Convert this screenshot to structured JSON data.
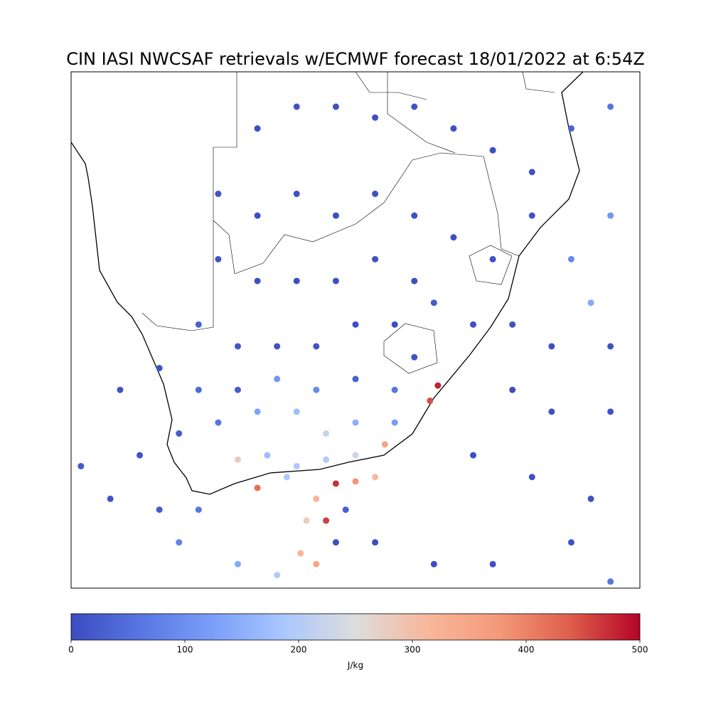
{
  "chart_data": {
    "type": "scatter",
    "title": "CIN IASI NWCSAF retrievals w/ECMWF forecast 18/01/2022 at 6:54Z",
    "xlim": [
      12.5,
      41.5
    ],
    "ylim": [
      -39.1,
      -15.4
    ],
    "colormap": "coolwarm",
    "clim": [
      0,
      500
    ],
    "colorbar_ticks": [
      0,
      100,
      200,
      300,
      400,
      500
    ],
    "colorbar_label": "J/kg",
    "x": [
      22,
      24,
      26,
      28,
      30,
      32,
      34,
      36,
      38,
      40,
      20,
      22,
      24,
      26,
      28,
      30,
      32,
      34,
      36,
      38,
      40,
      39,
      20,
      22,
      24,
      26,
      28,
      30,
      31,
      33,
      35,
      37,
      40,
      19,
      21,
      23,
      25,
      27,
      29,
      30,
      35,
      37,
      40,
      15,
      17,
      19,
      21,
      23,
      25,
      27,
      29,
      31.2,
      30.8,
      16,
      18,
      20,
      22,
      24,
      25.5,
      27,
      29,
      21,
      22.5,
      24,
      25.5,
      27,
      28.5,
      33,
      36,
      39,
      13,
      14.5,
      17,
      19,
      22,
      23.5,
      25,
      26,
      27,
      28,
      24.5,
      25.5,
      26.5,
      24.2,
      25,
      26,
      28,
      31,
      34,
      38,
      21,
      23,
      40,
      18
    ],
    "y": [
      -18,
      -17,
      -17,
      -17.5,
      -17,
      -18,
      -19,
      -20,
      -18,
      -17,
      -21,
      -22,
      -21,
      -22,
      -21,
      -22,
      -23,
      -24,
      -22,
      -24,
      -22,
      -26,
      -24,
      -25,
      -25,
      -25,
      -24,
      -25,
      -26,
      -27,
      -27,
      -28,
      -28,
      -27,
      -28,
      -28,
      -28,
      -27,
      -27,
      -28.5,
      -30,
      -31,
      -31,
      -30,
      -29,
      -30,
      -30,
      -29.5,
      -30,
      -29.5,
      -30,
      -29.8,
      -30.5,
      -33,
      -32,
      -31.5,
      -31,
      -31,
      -32,
      -31.5,
      -31.5,
      -33.2,
      -33,
      -33.5,
      -33.2,
      -33,
      -32.5,
      -33,
      -34,
      -35,
      -33.5,
      -35,
      -35.5,
      -35.5,
      -34.5,
      -34,
      -35,
      -34.3,
      -34.2,
      -34,
      -36,
      -36,
      -35.5,
      -37.5,
      -38,
      -37,
      -37,
      -38,
      -38,
      -37,
      -38,
      -38.5,
      -38.8,
      -37
    ],
    "values": [
      5,
      10,
      8,
      5,
      12,
      6,
      4,
      10,
      30,
      60,
      15,
      5,
      8,
      3,
      10,
      6,
      5,
      8,
      12,
      90,
      110,
      140,
      10,
      6,
      5,
      4,
      8,
      5,
      20,
      6,
      10,
      5,
      8,
      30,
      15,
      10,
      12,
      6,
      5,
      10,
      5,
      8,
      10,
      10,
      8,
      40,
      25,
      110,
      90,
      30,
      60,
      480,
      450,
      10,
      20,
      60,
      130,
      170,
      220,
      150,
      120,
      280,
      170,
      190,
      200,
      230,
      350,
      5,
      8,
      10,
      20,
      10,
      20,
      60,
      420,
      190,
      320,
      470,
      380,
      310,
      280,
      460,
      30,
      320,
      350,
      5,
      4,
      5,
      6,
      10,
      140,
      200,
      60,
      80
    ]
  }
}
